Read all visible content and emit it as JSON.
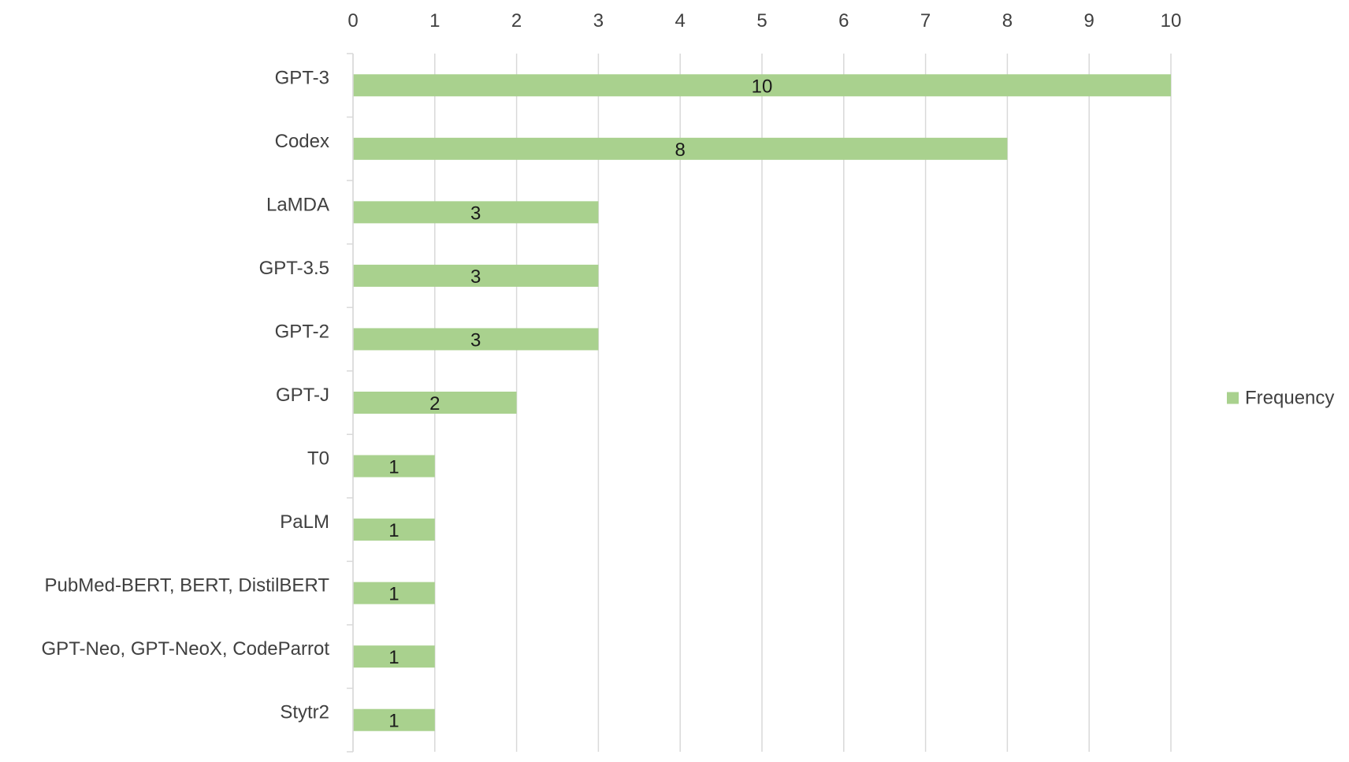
{
  "chart_data": {
    "type": "bar",
    "orientation": "horizontal",
    "categories": [
      "GPT-3",
      "Codex",
      "LaMDA",
      "GPT-3.5",
      "GPT-2",
      "GPT-J",
      "T0",
      "PaLM",
      "PubMed-BERT, BERT, DistilBERT",
      "GPT-Neo, GPT-NeoX, CodeParrot",
      "Stytr2"
    ],
    "series": [
      {
        "name": "Frequency",
        "values": [
          10,
          8,
          3,
          3,
          3,
          2,
          1,
          1,
          1,
          1,
          1
        ],
        "color": "#a9d18e"
      }
    ],
    "xlim": [
      0,
      10
    ],
    "x_ticks": [
      0,
      1,
      2,
      3,
      4,
      5,
      6,
      7,
      8,
      9,
      10
    ],
    "x_axis_position": "top",
    "grid": true,
    "gridline_color": "#d9d9d9",
    "data_labels": true,
    "legend": "right",
    "title": "",
    "xlabel": "",
    "ylabel": ""
  }
}
